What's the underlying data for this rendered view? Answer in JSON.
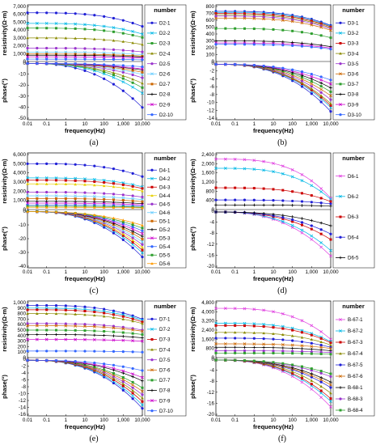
{
  "chart_data": [
    {
      "type": "line",
      "caption": "(a)",
      "xlabel": "frequency(Hz)",
      "xticks": [
        "0.01",
        "0.1",
        "1",
        "10",
        "100",
        "1,000",
        "10,000"
      ],
      "legend_title": "number",
      "legend_entries": [
        "D2-1",
        "D2-2",
        "D2-3",
        "D2-4",
        "D2-5",
        "D2-6",
        "D2-7",
        "D2-8",
        "D2-9",
        "D2-10"
      ],
      "top": {
        "ylabel": "resistivity(Ω·m)",
        "yticks": [
          "0",
          "1,000",
          "2,000",
          "3,000",
          "4,000",
          "5,000",
          "6,000",
          "7,000"
        ],
        "ylim": [
          0,
          7000
        ],
        "scale": "linear"
      },
      "bottom": {
        "ylabel": "phase(°)",
        "yticks": [
          "0",
          "-10",
          "-20",
          "-30",
          "-40",
          "-50"
        ],
        "ylim": [
          -50,
          0
        ]
      },
      "series": [
        {
          "res": 6200,
          "phase_end": -40,
          "color": "#1f1fd6",
          "marker": "o"
        },
        {
          "res": 4850,
          "phase_end": -27,
          "color": "#00b8e6",
          "marker": "x"
        },
        {
          "res": 4250,
          "phase_end": -22,
          "color": "#2e9e2e",
          "marker": "s"
        },
        {
          "res": 3000,
          "phase_end": -18,
          "color": "#8a8a00",
          "marker": "^"
        },
        {
          "res": 1700,
          "phase_end": -13,
          "color": "#9933cc",
          "marker": "o"
        },
        {
          "res": 1200,
          "phase_end": -10,
          "color": "#66ccff",
          "marker": "x"
        },
        {
          "res": 950,
          "phase_end": -8,
          "color": "#cc6600",
          "marker": "s"
        },
        {
          "res": 800,
          "phase_end": -6,
          "color": "#000000",
          "marker": "+"
        },
        {
          "res": 600,
          "phase_end": -5,
          "color": "#cc00cc",
          "marker": "x"
        },
        {
          "res": 300,
          "phase_end": -3,
          "color": "#3366ff",
          "marker": "o"
        }
      ]
    },
    {
      "type": "line",
      "caption": "(b)",
      "xlabel": "frequency(Hz)",
      "xticks": [
        "0.01",
        "0.1",
        "1",
        "10",
        "100",
        "1,000",
        "10,000"
      ],
      "legend_title": "number",
      "legend_entries": [
        "D3-1",
        "D3-2",
        "D3-3",
        "D3-4",
        "D3-5",
        "D3-6",
        "D3-7",
        "D3-8",
        "D3-9",
        "D3-10"
      ],
      "top": {
        "ylabel": "resistivity(Ω·m)",
        "yticks": [
          "0",
          "100",
          "200",
          "300",
          "400",
          "500",
          "600",
          "700",
          "800"
        ],
        "ylim": [
          0,
          800
        ],
        "scale": "linear"
      },
      "bottom": {
        "ylabel": "phase(°)",
        "yticks": [
          "0",
          "-2",
          "-4",
          "-6",
          "-8",
          "-10",
          "-12",
          "-14"
        ],
        "ylim": [
          -14,
          0
        ]
      },
      "series": [
        {
          "res": 730,
          "phase_end": -12,
          "color": "#1f1fd6",
          "marker": "o"
        },
        {
          "res": 715,
          "phase_end": -11,
          "color": "#00b8e6",
          "marker": "x"
        },
        {
          "res": 700,
          "phase_end": -10.5,
          "color": "#cc0000",
          "marker": "s"
        },
        {
          "res": 680,
          "phase_end": -10,
          "color": "#8a8a00",
          "marker": "^"
        },
        {
          "res": 660,
          "phase_end": -9,
          "color": "#9933cc",
          "marker": "o"
        },
        {
          "res": 630,
          "phase_end": -8,
          "color": "#cc6600",
          "marker": "x"
        },
        {
          "res": 480,
          "phase_end": -7,
          "color": "#2e9e2e",
          "marker": "s"
        },
        {
          "res": 300,
          "phase_end": -6,
          "color": "#000000",
          "marker": "+"
        },
        {
          "res": 270,
          "phase_end": -5,
          "color": "#cc00cc",
          "marker": "x"
        },
        {
          "res": 250,
          "phase_end": -4,
          "color": "#3366ff",
          "marker": "o"
        }
      ]
    },
    {
      "type": "line",
      "caption": "(c)",
      "xlabel": "frequency(Hz)",
      "xticks": [
        "0.01",
        "0.1",
        "1",
        "10",
        "100",
        "1,000",
        "10,000"
      ],
      "legend_title": "number",
      "legend_entries": [
        "D4-1",
        "D4-2",
        "D4-3",
        "D4-4",
        "D4-5",
        "D4-6",
        "D5-1",
        "D5-2",
        "D5-3",
        "D5-4",
        "D5-5",
        "D5-6"
      ],
      "top": {
        "ylabel": "resistivity(Ω·m)",
        "yticks": [
          "0",
          "1,000",
          "2,000",
          "3,000",
          "4,000",
          "5,000",
          "6,000"
        ],
        "ylim": [
          0,
          6000
        ],
        "scale": "linear"
      },
      "bottom": {
        "ylabel": "phase(°)",
        "yticks": [
          "0",
          "-10",
          "-20",
          "-30",
          "-40"
        ],
        "ylim": [
          -40,
          0
        ]
      },
      "series": [
        {
          "res": 5000,
          "phase_end": -33,
          "color": "#1f1fd6",
          "marker": "o"
        },
        {
          "res": 3450,
          "phase_end": -30,
          "color": "#00b8e6",
          "marker": "x"
        },
        {
          "res": 3200,
          "phase_end": -28,
          "color": "#cc0000",
          "marker": "s"
        },
        {
          "res": 2800,
          "phase_end": -26,
          "color": "#e6d000",
          "marker": "^"
        },
        {
          "res": 1900,
          "phase_end": -24,
          "color": "#9933cc",
          "marker": "o"
        },
        {
          "res": 1500,
          "phase_end": -22,
          "color": "#66ccff",
          "marker": "x"
        },
        {
          "res": 1200,
          "phase_end": -20,
          "color": "#cc6600",
          "marker": "s"
        },
        {
          "res": 900,
          "phase_end": -18,
          "color": "#000000",
          "marker": "+"
        },
        {
          "res": 700,
          "phase_end": -16,
          "color": "#cc00cc",
          "marker": "x"
        },
        {
          "res": 500,
          "phase_end": -14,
          "color": "#3366ff",
          "marker": "o"
        },
        {
          "res": 350,
          "phase_end": -12,
          "color": "#2e9e2e",
          "marker": "s"
        },
        {
          "res": 250,
          "phase_end": -10,
          "color": "#ff9900",
          "marker": "^"
        }
      ]
    },
    {
      "type": "line",
      "caption": "(d)",
      "xlabel": "frequency(Hz)",
      "xticks": [
        "0.01",
        "0.1",
        "1",
        "10",
        "100",
        "1,000",
        "10,000"
      ],
      "legend_title": "number",
      "legend_entries": [
        "D6-1",
        "D6-2",
        "D6-3",
        "D6-4",
        "D6-5"
      ],
      "top": {
        "ylabel": "resistivity(Ω·m)",
        "yticks": [
          "0",
          "400",
          "800",
          "1,200",
          "1,600",
          "2,000",
          "2,400"
        ],
        "ylim": [
          0,
          2400
        ],
        "scale": "linear"
      },
      "bottom": {
        "ylabel": "phase(°)",
        "yticks": [
          "0",
          "-4",
          "-8",
          "-12",
          "-16",
          "-20"
        ],
        "ylim": [
          -20,
          0
        ]
      },
      "series": [
        {
          "res": 2200,
          "res_end": 500,
          "phase_end": -16,
          "color": "#e040e0",
          "marker": "x"
        },
        {
          "res": 1800,
          "res_end": 450,
          "phase_end": -14,
          "color": "#00b8e6",
          "marker": "x"
        },
        {
          "res": 950,
          "res_end": 350,
          "phase_end": -10,
          "color": "#cc0000",
          "marker": "s"
        },
        {
          "res": 420,
          "res_end": 250,
          "phase_end": -8,
          "color": "#1f1fd6",
          "marker": "o"
        },
        {
          "res": 200,
          "res_end": 150,
          "phase_end": -5,
          "color": "#000000",
          "marker": "+"
        }
      ]
    },
    {
      "type": "line",
      "caption": "(e)",
      "xlabel": "frequency(Hz)",
      "xticks": [
        "0.01",
        "0.1",
        "1",
        "10",
        "100",
        "1,000",
        "10,000"
      ],
      "legend_title": "number",
      "legend_entries": [
        "D7-1",
        "D7-2",
        "D7-3",
        "D7-4",
        "D7-5",
        "D7-6",
        "D7-7",
        "D7-8",
        "D7-9",
        "D7-10"
      ],
      "top": {
        "ylabel": "resistivity(Ω·m)",
        "yticks": [
          "0",
          "100",
          "200",
          "300",
          "400",
          "500",
          "600",
          "700",
          "800",
          "900",
          "1,000"
        ],
        "ylim": [
          0,
          1000
        ],
        "scale": "linear"
      },
      "bottom": {
        "ylabel": "phase(°)",
        "yticks": [
          "0",
          "-2",
          "-4",
          "-6",
          "-8",
          "-10",
          "-12",
          "-14",
          "-16"
        ],
        "ylim": [
          -16,
          0
        ]
      },
      "series": [
        {
          "res": 950,
          "res_end": 700,
          "phase_end": -14,
          "color": "#1f1fd6",
          "marker": "o"
        },
        {
          "res": 900,
          "res_end": 680,
          "phase_end": -13,
          "color": "#00b8e6",
          "marker": "x"
        },
        {
          "res": 870,
          "res_end": 650,
          "phase_end": -12,
          "color": "#cc0000",
          "marker": "s"
        },
        {
          "res": 800,
          "res_end": 620,
          "phase_end": -11,
          "color": "#8a8a00",
          "marker": "^"
        },
        {
          "res": 620,
          "res_end": 500,
          "phase_end": -10,
          "color": "#9933cc",
          "marker": "o"
        },
        {
          "res": 580,
          "res_end": 480,
          "phase_end": -9,
          "color": "#cc6600",
          "marker": "x"
        },
        {
          "res": 500,
          "res_end": 420,
          "phase_end": -8,
          "color": "#2e9e2e",
          "marker": "s"
        },
        {
          "res": 420,
          "res_end": 360,
          "phase_end": -6,
          "color": "#000000",
          "marker": "+"
        },
        {
          "res": 330,
          "res_end": 300,
          "phase_end": -5,
          "color": "#cc00cc",
          "marker": "x"
        },
        {
          "res": 120,
          "res_end": 100,
          "phase_end": -3,
          "color": "#3366ff",
          "marker": "o"
        }
      ]
    },
    {
      "type": "line",
      "caption": "(f)",
      "xlabel": "frequency(Hz)",
      "xticks": [
        "0.01",
        "0.1",
        "1",
        "10",
        "100",
        "1,000",
        "10,000"
      ],
      "legend_title": "number",
      "legend_entries": [
        "B-67-1",
        "B-67-2",
        "B-67-3",
        "B-67-4",
        "B-67-5",
        "B-67-6",
        "B-68-1",
        "B-68-3",
        "B-68-4"
      ],
      "top": {
        "ylabel": "resistivity(Ω·m)",
        "yticks": [
          "0",
          "800",
          "1,600",
          "2,400",
          "3,200",
          "4,000",
          "4,800"
        ],
        "ylim": [
          0,
          4800
        ],
        "scale": "linear"
      },
      "bottom": {
        "ylabel": "phase(°)",
        "yticks": [
          "0",
          "-4",
          "-8",
          "-12",
          "-16",
          "-20"
        ],
        "ylim": [
          -20,
          0
        ]
      },
      "series": [
        {
          "res": 4300,
          "res_end": 1600,
          "phase_end": -17,
          "color": "#e040e0",
          "marker": "x"
        },
        {
          "res": 3000,
          "res_end": 1400,
          "phase_end": -15,
          "color": "#00b8e6",
          "marker": "x"
        },
        {
          "res": 2800,
          "res_end": 1300,
          "phase_end": -14,
          "color": "#cc0000",
          "marker": "s"
        },
        {
          "res": 2200,
          "res_end": 1100,
          "phase_end": -12,
          "color": "#8a8a00",
          "marker": "^"
        },
        {
          "res": 1700,
          "res_end": 900,
          "phase_end": -10,
          "color": "#1f1fd6",
          "marker": "o"
        },
        {
          "res": 1200,
          "res_end": 800,
          "phase_end": -9,
          "color": "#cc6600",
          "marker": "x"
        },
        {
          "res": 900,
          "res_end": 600,
          "phase_end": -8,
          "color": "#000000",
          "marker": "+"
        },
        {
          "res": 600,
          "res_end": 450,
          "phase_end": -6,
          "color": "#9933cc",
          "marker": "o"
        },
        {
          "res": 400,
          "res_end": 300,
          "phase_end": -5,
          "color": "#2e9e2e",
          "marker": "s"
        }
      ]
    }
  ]
}
